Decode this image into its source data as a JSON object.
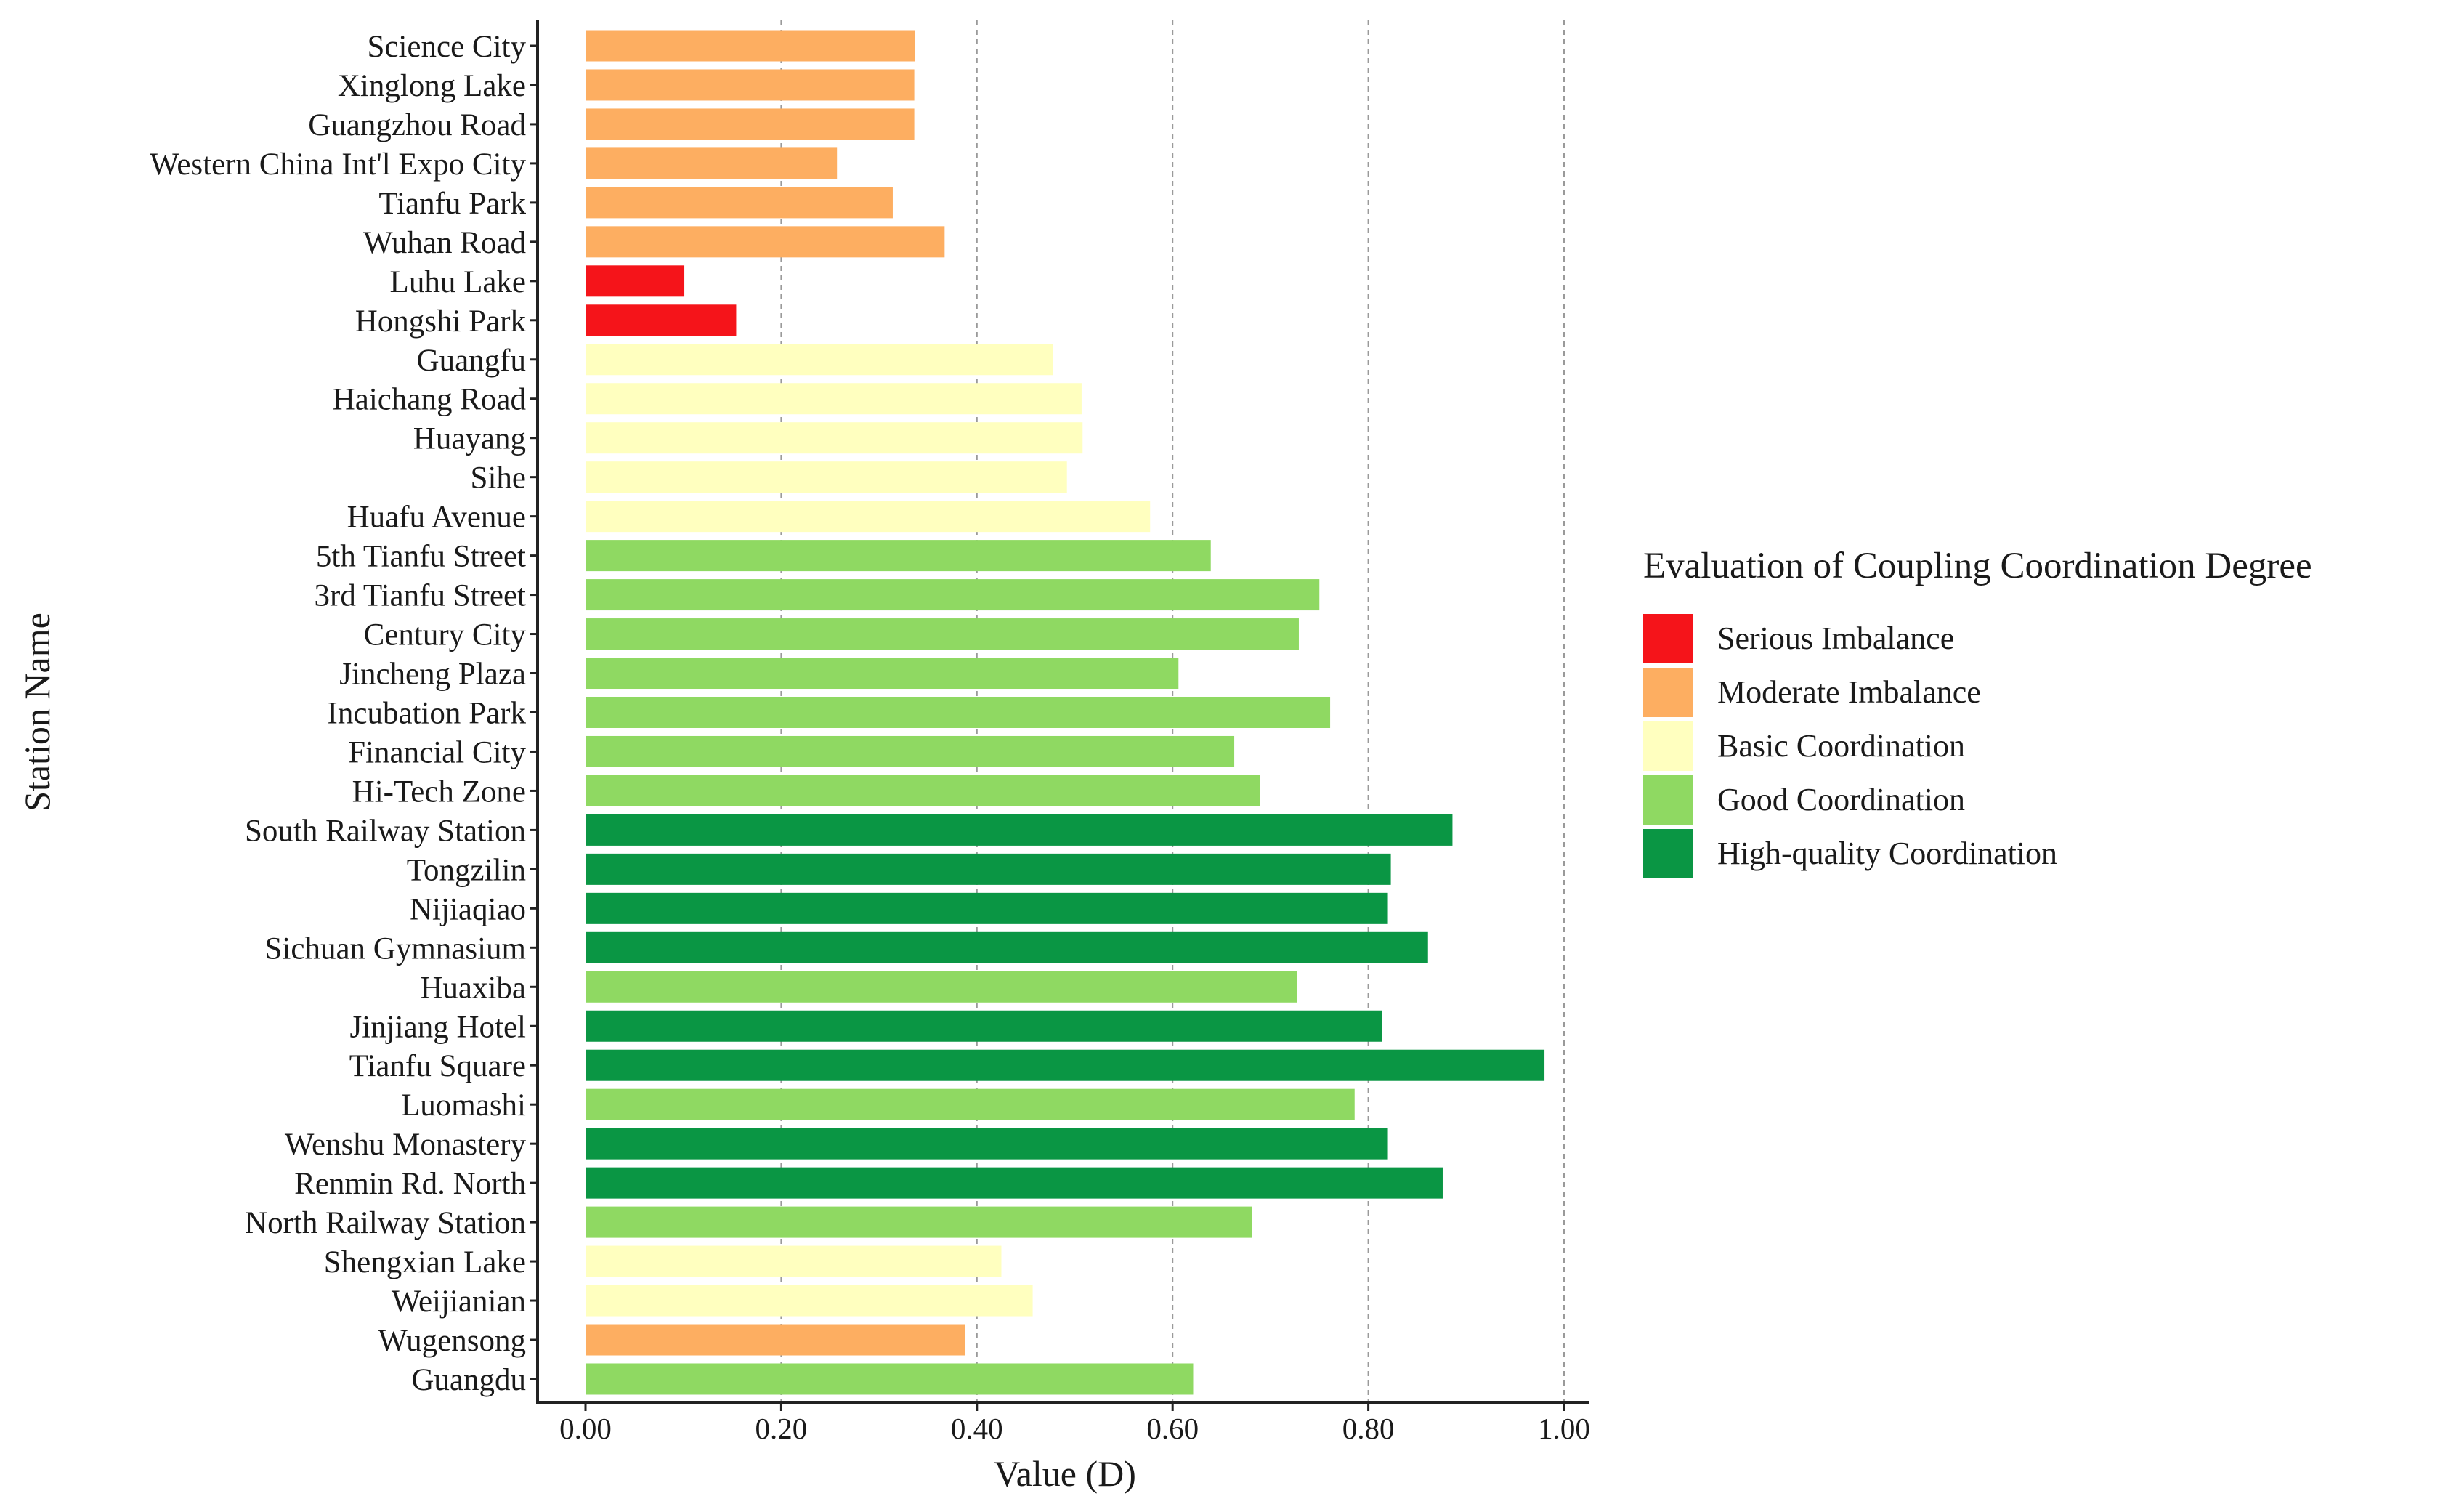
{
  "chart_data": {
    "type": "bar",
    "orientation": "horizontal",
    "xlabel": "Value (D)",
    "ylabel": "Station Name",
    "xlim": [
      0,
      1
    ],
    "x_ticks": [
      {
        "value": 0,
        "label": "0.00"
      },
      {
        "value": 0.2,
        "label": "0.20"
      },
      {
        "value": 0.4,
        "label": "0.40"
      },
      {
        "value": 0.6,
        "label": "0.60"
      },
      {
        "value": 0.8,
        "label": "0.80"
      },
      {
        "value": 1.0,
        "label": "1.00"
      }
    ],
    "grid": "vertical dashed",
    "legend": {
      "title": "Evaluation of Coupling Coordination Degree",
      "placement": "right",
      "items": [
        {
          "key": "serious",
          "label": "Serious Imbalance",
          "color": "#f5141a"
        },
        {
          "key": "moderate",
          "label": "Moderate Imbalance",
          "color": "#fdae61"
        },
        {
          "key": "basic",
          "label": "Basic Coordination",
          "color": "#ffffbf"
        },
        {
          "key": "good",
          "label": "Good Coordination",
          "color": "#8fd962"
        },
        {
          "key": "high",
          "label": "High-quality Coordination",
          "color": "#0a9644"
        }
      ]
    },
    "bars": [
      {
        "name": "Science City",
        "value": 0.337,
        "level": "moderate"
      },
      {
        "name": "Xinglong Lake",
        "value": 0.336,
        "level": "moderate"
      },
      {
        "name": "Guangzhou Road",
        "value": 0.336,
        "level": "moderate"
      },
      {
        "name": "Western China Int'l Expo City",
        "value": 0.257,
        "level": "moderate"
      },
      {
        "name": "Tianfu Park",
        "value": 0.314,
        "level": "moderate"
      },
      {
        "name": "Wuhan Road",
        "value": 0.367,
        "level": "moderate"
      },
      {
        "name": "Luhu Lake",
        "value": 0.101,
        "level": "serious"
      },
      {
        "name": "Hongshi Park",
        "value": 0.154,
        "level": "serious"
      },
      {
        "name": "Guangfu",
        "value": 0.478,
        "level": "basic"
      },
      {
        "name": "Haichang Road",
        "value": 0.507,
        "level": "basic"
      },
      {
        "name": "Huayang",
        "value": 0.508,
        "level": "basic"
      },
      {
        "name": "Sihe",
        "value": 0.492,
        "level": "basic"
      },
      {
        "name": "Huafu Avenue",
        "value": 0.577,
        "level": "basic"
      },
      {
        "name": "5th Tianfu Street",
        "value": 0.639,
        "level": "good"
      },
      {
        "name": "3rd Tianfu Street",
        "value": 0.75,
        "level": "good"
      },
      {
        "name": "Century City",
        "value": 0.729,
        "level": "good"
      },
      {
        "name": "Jincheng Plaza",
        "value": 0.606,
        "level": "good"
      },
      {
        "name": "Incubation Park",
        "value": 0.761,
        "level": "good"
      },
      {
        "name": "Financial City",
        "value": 0.663,
        "level": "good"
      },
      {
        "name": "Hi-Tech Zone",
        "value": 0.689,
        "level": "good"
      },
      {
        "name": "South Railway Station",
        "value": 0.886,
        "level": "high"
      },
      {
        "name": "Tongzilin",
        "value": 0.823,
        "level": "high"
      },
      {
        "name": "Nijiaqiao",
        "value": 0.82,
        "level": "high"
      },
      {
        "name": "Sichuan Gymnasium",
        "value": 0.861,
        "level": "high"
      },
      {
        "name": "Huaxiba",
        "value": 0.727,
        "level": "good"
      },
      {
        "name": "Jinjiang Hotel",
        "value": 0.814,
        "level": "high"
      },
      {
        "name": "Tianfu Square",
        "value": 0.98,
        "level": "high"
      },
      {
        "name": "Luomashi",
        "value": 0.786,
        "level": "good"
      },
      {
        "name": "Wenshu Monastery",
        "value": 0.82,
        "level": "high"
      },
      {
        "name": "Renmin Rd. North",
        "value": 0.876,
        "level": "high"
      },
      {
        "name": "North Railway Station",
        "value": 0.681,
        "level": "good"
      },
      {
        "name": "Shengxian Lake",
        "value": 0.425,
        "level": "basic"
      },
      {
        "name": "Weijianian",
        "value": 0.457,
        "level": "basic"
      },
      {
        "name": "Wugensong",
        "value": 0.388,
        "level": "moderate"
      },
      {
        "name": "Guangdu",
        "value": 0.621,
        "level": "good"
      }
    ]
  }
}
